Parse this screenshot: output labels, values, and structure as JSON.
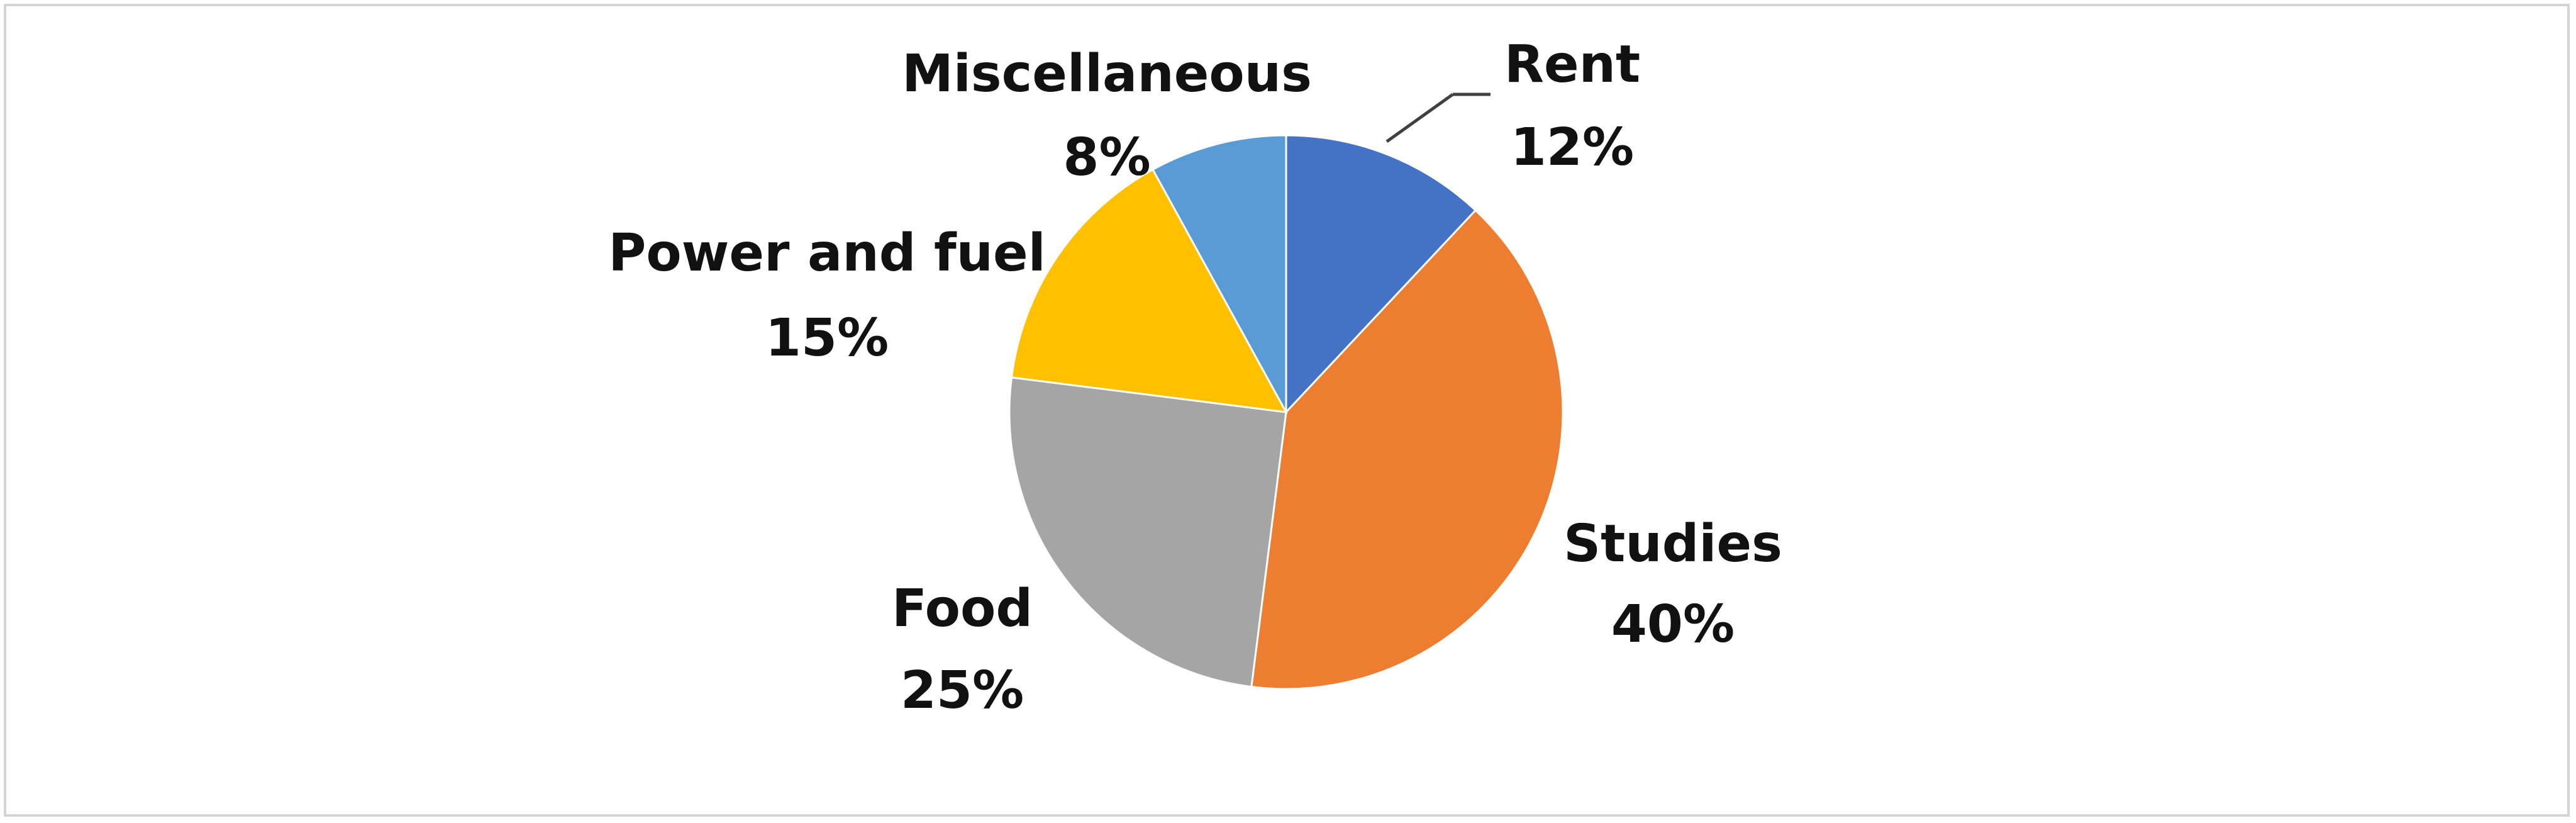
{
  "chart_data": {
    "type": "pie",
    "title": "",
    "start_angle_deg": 0,
    "direction": "clockwise",
    "slices": [
      {
        "label": "Rent",
        "value": 12,
        "value_label": "12%",
        "color": "#4472C4"
      },
      {
        "label": "Studies",
        "value": 40,
        "value_label": "40%",
        "color": "#ED7D31"
      },
      {
        "label": "Food",
        "value": 25,
        "value_label": "25%",
        "color": "#A5A5A5"
      },
      {
        "label": "Power and fuel",
        "value": 15,
        "value_label": "15%",
        "color": "#FFC000"
      },
      {
        "label": "Miscellaneous",
        "value": 8,
        "value_label": "8%",
        "color": "#5B9BD5"
      }
    ]
  }
}
